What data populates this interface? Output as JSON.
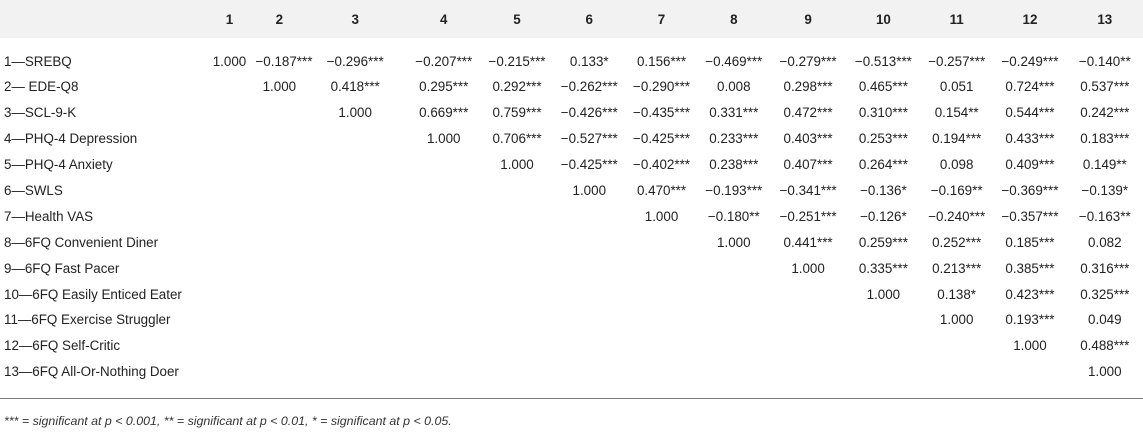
{
  "table": {
    "headers": [
      "",
      "1",
      "2",
      "3",
      "4",
      "5",
      "6",
      "7",
      "8",
      "9",
      "10",
      "11",
      "12",
      "13"
    ],
    "rows": [
      [
        "1—SREBQ",
        "1.000",
        "−0.187***",
        "−0.296***",
        "−0.207***",
        "−0.215***",
        "0.133*",
        "0.156***",
        "−0.469***",
        "−0.279***",
        "−0.513***",
        "−0.257***",
        "−0.249***",
        "−0.140**"
      ],
      [
        "2— EDE-Q8",
        "",
        "1.000",
        "0.418***",
        "0.295***",
        "0.292***",
        "−0.262***",
        "−0.290***",
        "0.008",
        "0.298***",
        "0.465***",
        "0.051",
        "0.724***",
        "0.537***"
      ],
      [
        "3—SCL-9-K",
        "",
        "",
        "1.000",
        "0.669***",
        "0.759***",
        "−0.426***",
        "−0.435***",
        "0.331***",
        "0.472***",
        "0.310***",
        "0.154**",
        "0.544***",
        "0.242***"
      ],
      [
        "4—PHQ-4 Depression",
        "",
        "",
        "",
        "1.000",
        "0.706***",
        "−0.527***",
        "−0.425***",
        "0.233***",
        "0.403***",
        "0.253***",
        "0.194***",
        "0.433***",
        "0.183***"
      ],
      [
        "5—PHQ-4 Anxiety",
        "",
        "",
        "",
        "",
        "1.000",
        "−0.425***",
        "−0.402***",
        "0.238***",
        "0.407***",
        "0.264***",
        "0.098",
        "0.409***",
        "0.149**"
      ],
      [
        "6—SWLS",
        "",
        "",
        "",
        "",
        "",
        "1.000",
        "0.470***",
        "−0.193***",
        "−0.341***",
        "−0.136*",
        "−0.169**",
        "−0.369***",
        "−0.139*"
      ],
      [
        "7—Health VAS",
        "",
        "",
        "",
        "",
        "",
        "",
        "1.000",
        "−0.180**",
        "−0.251***",
        "−0.126*",
        "−0.240***",
        "−0.357***",
        "−0.163**"
      ],
      [
        "8—6FQ Convenient Diner",
        "",
        "",
        "",
        "",
        "",
        "",
        "",
        "1.000",
        "0.441***",
        "0.259***",
        "0.252***",
        "0.185***",
        "0.082"
      ],
      [
        "9—6FQ Fast Pacer",
        "",
        "",
        "",
        "",
        "",
        "",
        "",
        "",
        "1.000",
        "0.335***",
        "0.213***",
        "0.385***",
        "0.316***"
      ],
      [
        "10—6FQ Easily Enticed Eater",
        "",
        "",
        "",
        "",
        "",
        "",
        "",
        "",
        "",
        "1.000",
        "0.138*",
        "0.423***",
        "0.325***"
      ],
      [
        "11—6FQ Exercise Struggler",
        "",
        "",
        "",
        "",
        "",
        "",
        "",
        "",
        "",
        "",
        "1.000",
        "0.193***",
        "0.049"
      ],
      [
        "12—6FQ Self-Critic",
        "",
        "",
        "",
        "",
        "",
        "",
        "",
        "",
        "",
        "",
        "",
        "1.000",
        "0.488***"
      ],
      [
        "13—6FQ All-Or-Nothing Doer",
        "",
        "",
        "",
        "",
        "",
        "",
        "",
        "",
        "",
        "",
        "",
        "",
        "1.000"
      ]
    ]
  },
  "footnote": "*** = significant at p < 0.001, ** = significant at p < 0.01, * = significant at p < 0.05."
}
